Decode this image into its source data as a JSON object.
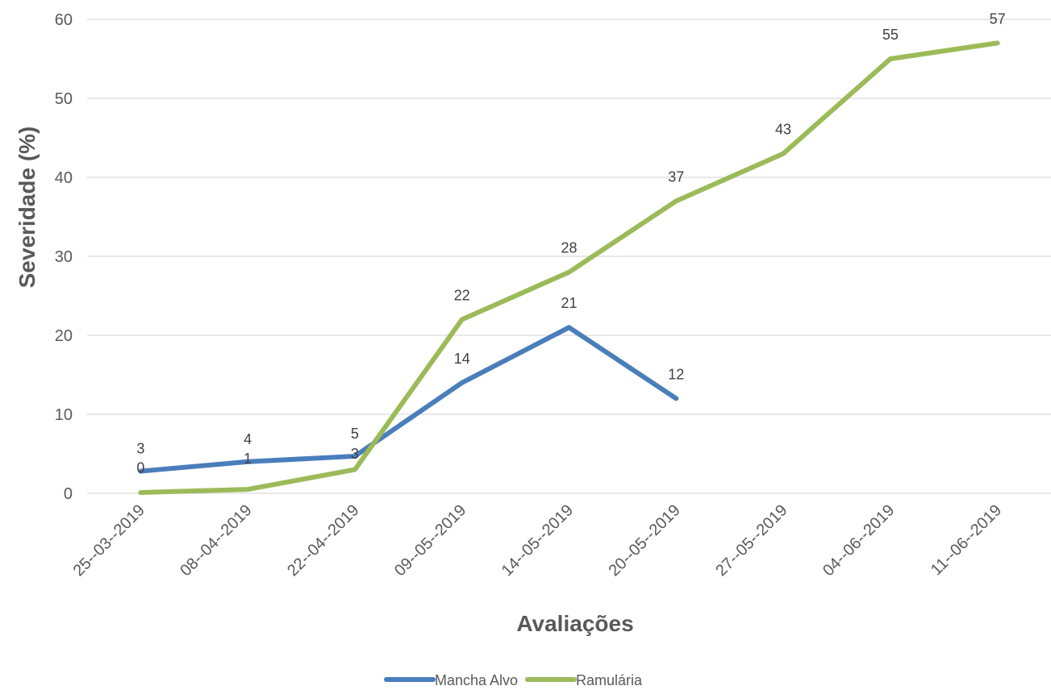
{
  "chart_data": {
    "type": "line",
    "categories": [
      "25--03--2019",
      "08--04--2019",
      "22--04--2019",
      "09--05--2019",
      "14--05--2019",
      "20--05--2019",
      "27--05--2019",
      "04--06--2019",
      "11--06--2019"
    ],
    "series": [
      {
        "name": "Mancha Alvo",
        "color": "#4a7ebb",
        "values": [
          2.8,
          4.0,
          4.7,
          14.0,
          21.0,
          12.0,
          null,
          null,
          null
        ],
        "labels": [
          "3",
          "4",
          "5",
          "14",
          "21",
          "12",
          "",
          "",
          ""
        ]
      },
      {
        "name": "Ramulária",
        "color": "#9bbb59",
        "values": [
          0.1,
          0.5,
          3.0,
          22.0,
          28.0,
          37.0,
          43.0,
          55.0,
          57.0
        ],
        "labels": [
          "0",
          "1",
          "3",
          "22",
          "28",
          "37",
          "43",
          "55",
          "57"
        ]
      }
    ],
    "xlabel": "Avaliações",
    "ylabel": "Severidade (%)",
    "ylim": [
      0,
      60
    ],
    "yticks": [
      "0",
      "10",
      "20",
      "30",
      "40",
      "50",
      "60"
    ],
    "grid": true,
    "legend_position": "bottom"
  }
}
